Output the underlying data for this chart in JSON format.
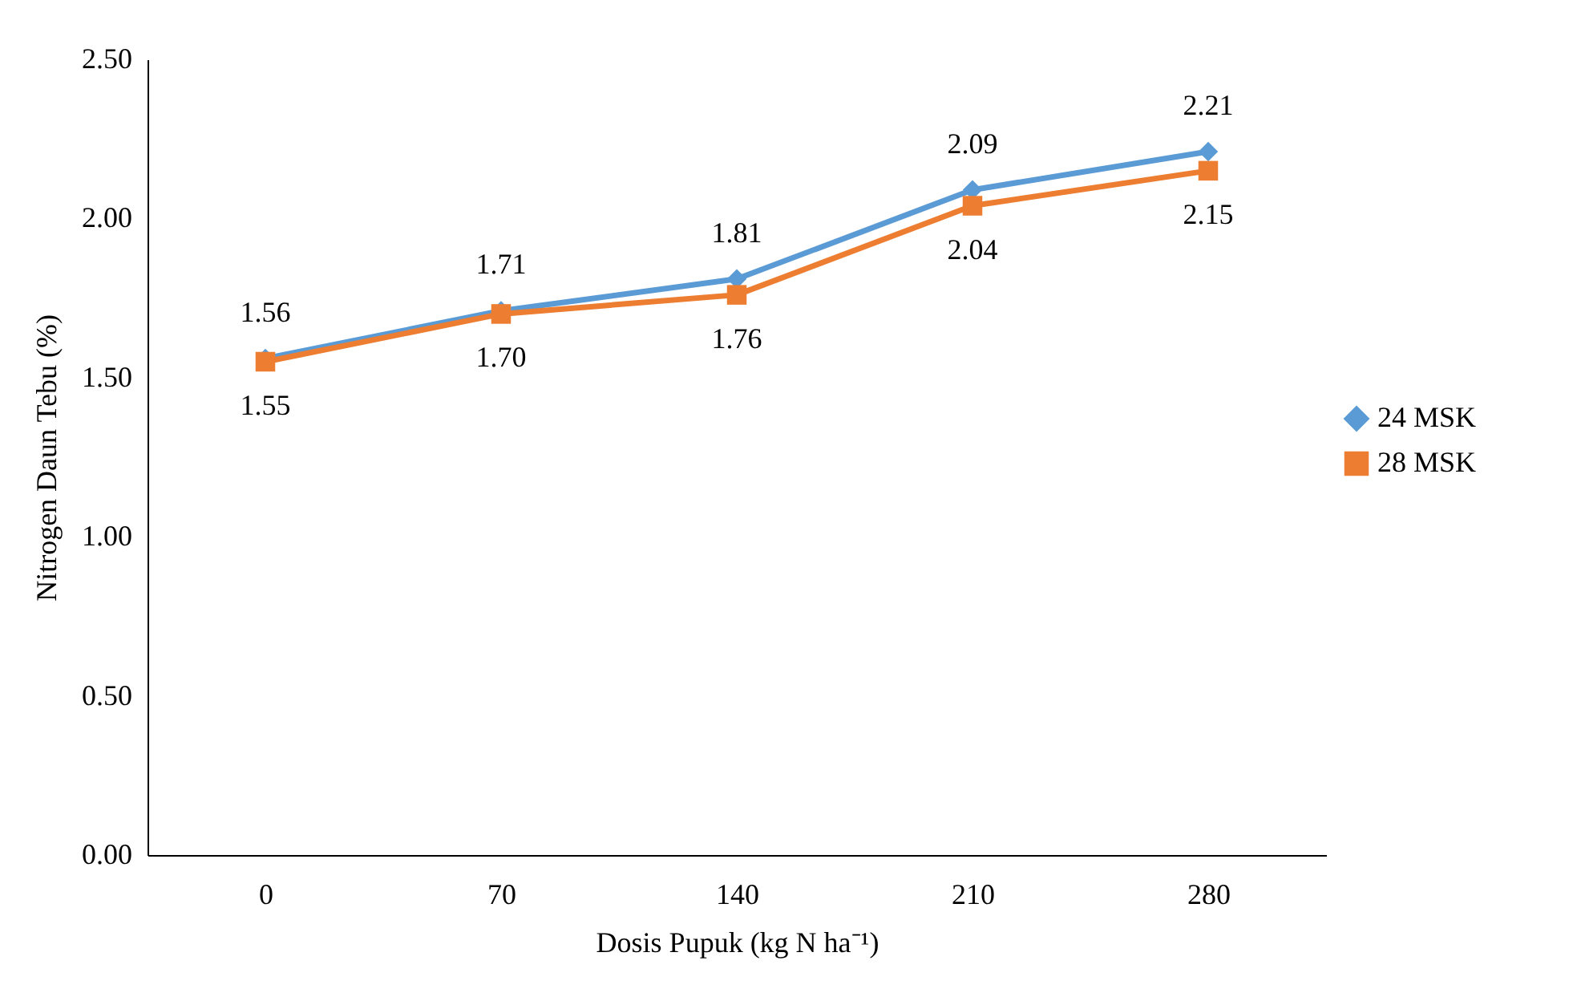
{
  "chart_data": {
    "type": "line",
    "xlabel": "Dosis Pupuk (kg N ha⁻¹)",
    "ylabel": "Nitrogen Daun Tebu (%)",
    "categories": [
      "0",
      "70",
      "140",
      "210",
      "280"
    ],
    "series": [
      {
        "name": "24 MSK",
        "color": "#5b9bd5",
        "marker": "diamond",
        "values": [
          1.56,
          1.71,
          1.81,
          2.09,
          2.21
        ],
        "value_labels": [
          "1.56",
          "1.71",
          "1.81",
          "2.09",
          "2.21"
        ]
      },
      {
        "name": "28 MSK",
        "color": "#ed7d31",
        "marker": "square",
        "values": [
          1.55,
          1.7,
          1.76,
          2.04,
          2.15
        ],
        "value_labels": [
          "1.55",
          "1.70",
          "1.76",
          "2.04",
          "2.15"
        ]
      }
    ],
    "ylim": [
      0,
      2.5
    ],
    "yticks": [
      {
        "value": 0,
        "label": "0.00"
      },
      {
        "value": 0.5,
        "label": "0.50"
      },
      {
        "value": 1,
        "label": "1.00"
      },
      {
        "value": 1.5,
        "label": "1.50"
      },
      {
        "value": 2,
        "label": "2.00"
      },
      {
        "value": 2.5,
        "label": "2.50"
      }
    ],
    "grid": false,
    "legend": "right",
    "line_style": "solid"
  }
}
